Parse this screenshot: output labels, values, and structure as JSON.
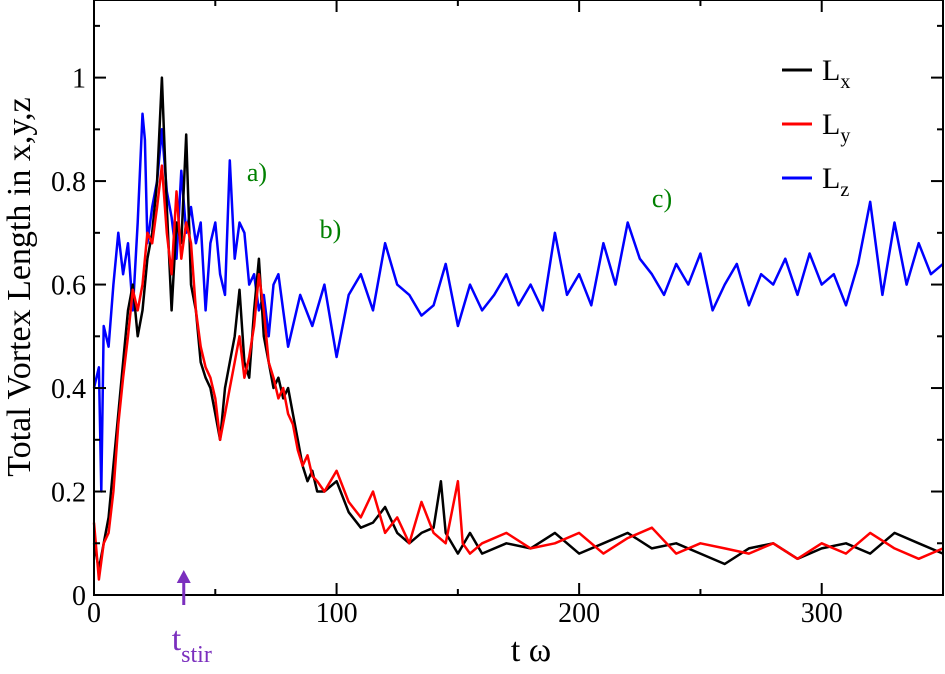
{
  "chart_data": {
    "type": "line",
    "xlabel": "t ω",
    "ylabel": "Total Vortex Length in x,y,z",
    "xlim": [
      0,
      350
    ],
    "ylim": [
      0,
      1.15
    ],
    "xticks": [
      0,
      100,
      200,
      300
    ],
    "yticks": [
      0,
      0.2,
      0.4,
      0.6,
      0.8,
      1
    ],
    "xtick_labels": [
      "0",
      "100",
      "200",
      "300"
    ],
    "ytick_labels": [
      "0",
      "0.2",
      "0.4",
      "0.6",
      "0.8",
      "1"
    ],
    "legend_position": "top-right",
    "series": [
      {
        "name": "L",
        "subscript": "x",
        "color": "#000000",
        "x": [
          0,
          2,
          4,
          6,
          8,
          10,
          12,
          14,
          16,
          18,
          20,
          22,
          24,
          26,
          27,
          28,
          30,
          32,
          34,
          36,
          38,
          40,
          42,
          44,
          46,
          48,
          50,
          52,
          54,
          56,
          58,
          60,
          62,
          64,
          66,
          68,
          70,
          72,
          74,
          76,
          78,
          80,
          82,
          84,
          86,
          88,
          90,
          92,
          95,
          100,
          105,
          110,
          115,
          120,
          125,
          130,
          135,
          140,
          143,
          145,
          150,
          155,
          160,
          170,
          180,
          190,
          200,
          210,
          220,
          230,
          240,
          250,
          260,
          270,
          280,
          290,
          300,
          310,
          320,
          330,
          340,
          350
        ],
        "y": [
          0.1,
          0.05,
          0.1,
          0.15,
          0.25,
          0.35,
          0.45,
          0.55,
          0.6,
          0.5,
          0.55,
          0.65,
          0.7,
          0.8,
          0.9,
          1.0,
          0.75,
          0.55,
          0.72,
          0.68,
          0.89,
          0.6,
          0.55,
          0.45,
          0.42,
          0.4,
          0.35,
          0.3,
          0.4,
          0.45,
          0.5,
          0.59,
          0.45,
          0.42,
          0.55,
          0.65,
          0.5,
          0.45,
          0.4,
          0.42,
          0.38,
          0.4,
          0.35,
          0.3,
          0.25,
          0.22,
          0.24,
          0.2,
          0.2,
          0.22,
          0.16,
          0.13,
          0.14,
          0.17,
          0.12,
          0.1,
          0.12,
          0.13,
          0.22,
          0.12,
          0.08,
          0.12,
          0.08,
          0.1,
          0.09,
          0.12,
          0.08,
          0.1,
          0.12,
          0.09,
          0.1,
          0.08,
          0.06,
          0.09,
          0.1,
          0.07,
          0.09,
          0.1,
          0.08,
          0.12,
          0.1,
          0.08
        ]
      },
      {
        "name": "L",
        "subscript": "y",
        "color": "#ff0000",
        "x": [
          0,
          2,
          4,
          6,
          8,
          10,
          12,
          14,
          16,
          18,
          20,
          22,
          24,
          26,
          28,
          30,
          32,
          34,
          36,
          38,
          40,
          42,
          44,
          46,
          48,
          50,
          52,
          54,
          56,
          58,
          60,
          62,
          64,
          66,
          68,
          70,
          72,
          74,
          76,
          78,
          80,
          82,
          84,
          86,
          88,
          90,
          92,
          95,
          100,
          105,
          110,
          115,
          120,
          125,
          130,
          135,
          140,
          145,
          150,
          152,
          155,
          160,
          170,
          180,
          190,
          200,
          210,
          220,
          230,
          240,
          250,
          260,
          270,
          280,
          290,
          300,
          310,
          320,
          330,
          340,
          350
        ],
        "y": [
          0.14,
          0.03,
          0.1,
          0.12,
          0.2,
          0.33,
          0.42,
          0.5,
          0.59,
          0.55,
          0.6,
          0.7,
          0.68,
          0.75,
          0.83,
          0.7,
          0.62,
          0.78,
          0.65,
          0.72,
          0.68,
          0.55,
          0.48,
          0.44,
          0.42,
          0.38,
          0.3,
          0.35,
          0.4,
          0.45,
          0.5,
          0.42,
          0.46,
          0.52,
          0.62,
          0.55,
          0.45,
          0.42,
          0.38,
          0.4,
          0.35,
          0.33,
          0.28,
          0.25,
          0.27,
          0.23,
          0.22,
          0.2,
          0.24,
          0.18,
          0.15,
          0.2,
          0.12,
          0.15,
          0.1,
          0.18,
          0.12,
          0.1,
          0.22,
          0.1,
          0.08,
          0.1,
          0.12,
          0.09,
          0.1,
          0.12,
          0.08,
          0.11,
          0.13,
          0.08,
          0.1,
          0.09,
          0.08,
          0.1,
          0.07,
          0.1,
          0.08,
          0.12,
          0.09,
          0.07,
          0.09
        ]
      },
      {
        "name": "L",
        "subscript": "z",
        "color": "#0000ff",
        "x": [
          0,
          2,
          3,
          4,
          6,
          8,
          10,
          12,
          14,
          16,
          18,
          20,
          21,
          22,
          24,
          26,
          28,
          30,
          32,
          34,
          36,
          38,
          40,
          42,
          44,
          46,
          48,
          50,
          52,
          54,
          56,
          58,
          60,
          62,
          64,
          66,
          68,
          70,
          72,
          74,
          76,
          78,
          80,
          85,
          90,
          95,
          100,
          105,
          110,
          115,
          120,
          125,
          130,
          135,
          140,
          145,
          150,
          155,
          160,
          165,
          170,
          175,
          180,
          185,
          190,
          195,
          200,
          205,
          210,
          215,
          220,
          225,
          230,
          235,
          240,
          245,
          250,
          255,
          260,
          265,
          270,
          275,
          280,
          285,
          290,
          295,
          300,
          305,
          310,
          315,
          320,
          325,
          330,
          335,
          340,
          345,
          350
        ],
        "y": [
          0.4,
          0.44,
          0.2,
          0.52,
          0.48,
          0.6,
          0.7,
          0.62,
          0.68,
          0.55,
          0.72,
          0.93,
          0.88,
          0.68,
          0.75,
          0.8,
          0.9,
          0.78,
          0.73,
          0.65,
          0.82,
          0.7,
          0.75,
          0.68,
          0.72,
          0.55,
          0.68,
          0.72,
          0.62,
          0.58,
          0.84,
          0.65,
          0.72,
          0.7,
          0.6,
          0.62,
          0.55,
          0.58,
          0.5,
          0.6,
          0.62,
          0.55,
          0.48,
          0.58,
          0.52,
          0.6,
          0.46,
          0.58,
          0.62,
          0.55,
          0.68,
          0.6,
          0.58,
          0.54,
          0.56,
          0.64,
          0.52,
          0.6,
          0.55,
          0.58,
          0.62,
          0.56,
          0.6,
          0.55,
          0.7,
          0.58,
          0.62,
          0.56,
          0.68,
          0.6,
          0.72,
          0.65,
          0.62,
          0.58,
          0.64,
          0.6,
          0.66,
          0.55,
          0.6,
          0.64,
          0.56,
          0.62,
          0.6,
          0.65,
          0.58,
          0.66,
          0.6,
          0.62,
          0.56,
          0.64,
          0.76,
          0.58,
          0.72,
          0.6,
          0.68,
          0.62,
          0.64
        ]
      }
    ],
    "annotations": [
      {
        "text": "a)",
        "x": 63,
        "y": 0.8,
        "color": "#008000"
      },
      {
        "text": "b)",
        "x": 93,
        "y": 0.69,
        "color": "#008000"
      },
      {
        "text": "c)",
        "x": 230,
        "y": 0.75,
        "color": "#008000"
      }
    ],
    "marker": {
      "label": "t",
      "subscript": "stir",
      "x": 37,
      "color": "#7b2fbe"
    }
  }
}
